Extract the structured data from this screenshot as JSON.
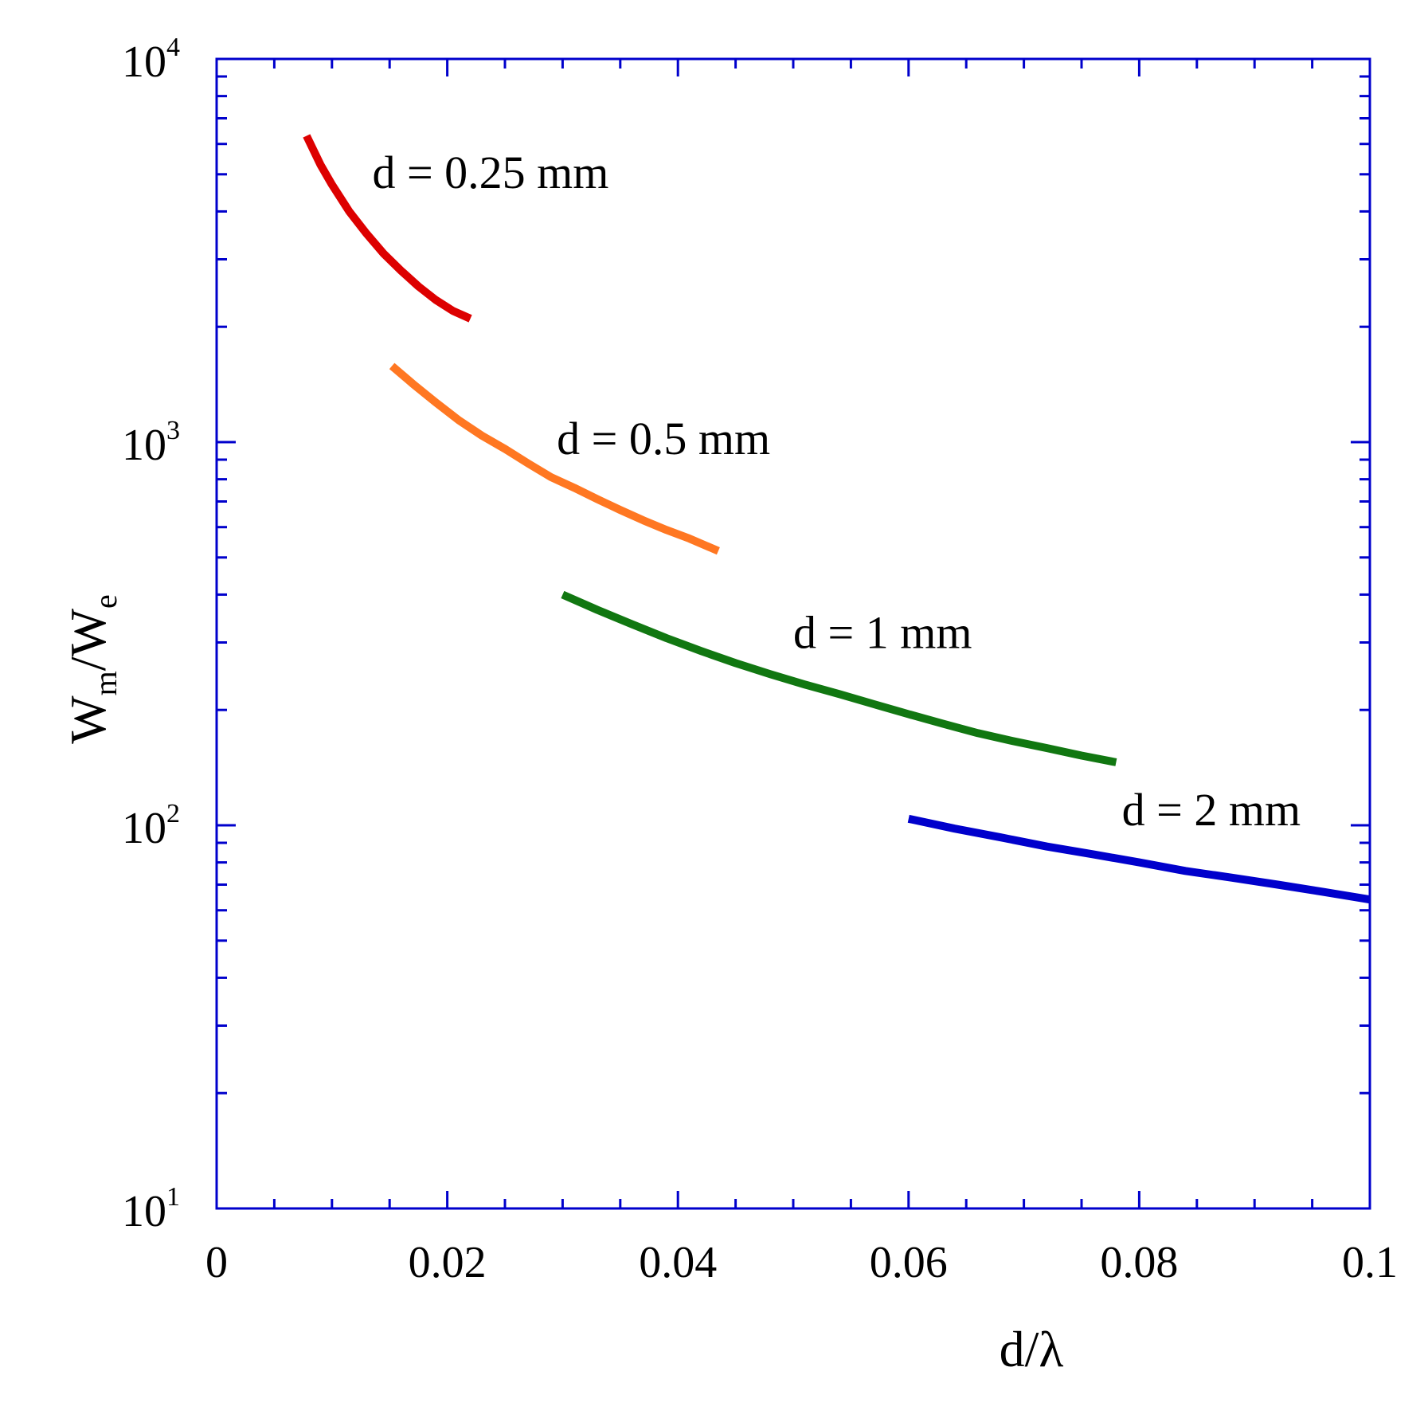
{
  "chart_data": {
    "type": "line",
    "title": "",
    "xlabel": "d/λ",
    "ylabel": {
      "base": "W",
      "sub1": "m",
      "sep": "/W",
      "sub2": "e"
    },
    "yscale": "log",
    "xlim": [
      0,
      0.1
    ],
    "ylim": [
      10,
      10000
    ],
    "x_ticks": [
      "0",
      "0.02",
      "0.04",
      "0.06",
      "0.08",
      "0.1"
    ],
    "x_tick_values": [
      0,
      0.02,
      0.04,
      0.06,
      0.08,
      0.1
    ],
    "y_ticks": [
      {
        "base": "10",
        "exp": "1",
        "value": 10
      },
      {
        "base": "10",
        "exp": "2",
        "value": 100
      },
      {
        "base": "10",
        "exp": "3",
        "value": 1000
      },
      {
        "base": "10",
        "exp": "4",
        "value": 10000
      }
    ],
    "frame_color": "#0000cc",
    "series": [
      {
        "name": "d = 0.25 mm",
        "color": "#dd0000",
        "x": [
          0.0078,
          0.009,
          0.01,
          0.0115,
          0.013,
          0.0145,
          0.016,
          0.0175,
          0.019,
          0.0205,
          0.022
        ],
        "y": [
          6300,
          5300,
          4700,
          4000,
          3500,
          3100,
          2800,
          2550,
          2350,
          2200,
          2100
        ]
      },
      {
        "name": "d = 0.5 mm",
        "color": "#ff7722",
        "x": [
          0.0152,
          0.017,
          0.019,
          0.021,
          0.023,
          0.025,
          0.027,
          0.029,
          0.031,
          0.033,
          0.035,
          0.037,
          0.039,
          0.041,
          0.0435
        ],
        "y": [
          1580,
          1420,
          1270,
          1140,
          1040,
          960,
          880,
          810,
          760,
          710,
          665,
          625,
          590,
          560,
          520
        ]
      },
      {
        "name": "d = 1 mm",
        "color": "#117711",
        "x": [
          0.03,
          0.033,
          0.036,
          0.039,
          0.042,
          0.045,
          0.048,
          0.051,
          0.054,
          0.057,
          0.06,
          0.063,
          0.066,
          0.069,
          0.072,
          0.075,
          0.078
        ],
        "y": [
          400,
          365,
          335,
          308,
          285,
          265,
          248,
          233,
          220,
          207,
          195,
          184,
          174,
          166,
          159,
          152,
          146
        ]
      },
      {
        "name": "d = 2 mm",
        "color": "#0000cc",
        "x": [
          0.06,
          0.064,
          0.068,
          0.072,
          0.076,
          0.08,
          0.084,
          0.088,
          0.092,
          0.096,
          0.1
        ],
        "y": [
          104,
          98,
          93,
          88,
          84,
          80,
          76,
          73,
          70,
          67,
          64
        ]
      }
    ],
    "annotations": [
      {
        "text": "d = 0.25 mm",
        "x": 0.0135,
        "y": 4600
      },
      {
        "text": "d = 0.5 mm",
        "x": 0.0295,
        "y": 930
      },
      {
        "text": "d = 1 mm",
        "x": 0.05,
        "y": 290
      },
      {
        "text": "d = 2 mm",
        "x": 0.0785,
        "y": 100
      }
    ]
  }
}
